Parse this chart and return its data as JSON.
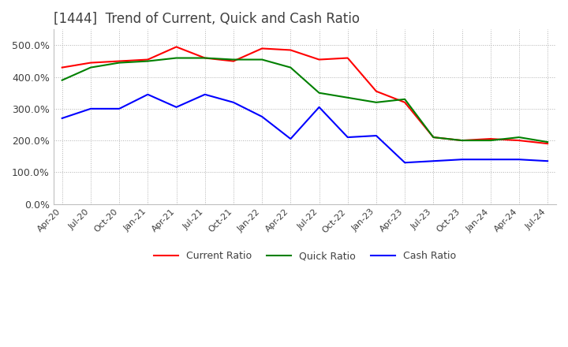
{
  "title": "[1444]  Trend of Current, Quick and Cash Ratio",
  "title_color": "#404040",
  "background_color": "#ffffff",
  "plot_background": "#ffffff",
  "grid_color": "#b0b0b0",
  "ylim": [
    0.0,
    5.5
  ],
  "yticks": [
    0.0,
    1.0,
    2.0,
    3.0,
    4.0,
    5.0
  ],
  "ytick_labels": [
    "0.0%",
    "100.0%",
    "200.0%",
    "300.0%",
    "400.0%",
    "500.0%"
  ],
  "xtick_labels": [
    "Apr-20",
    "Jul-20",
    "Oct-20",
    "Jan-21",
    "Apr-21",
    "Jul-21",
    "Oct-21",
    "Jan-22",
    "Apr-22",
    "Jul-22",
    "Oct-22",
    "Jan-23",
    "Apr-23",
    "Jul-23",
    "Oct-23",
    "Jan-24",
    "Apr-24",
    "Jul-24"
  ],
  "current_ratio": [
    4.3,
    4.45,
    4.5,
    4.55,
    4.95,
    4.6,
    4.5,
    4.9,
    4.85,
    4.55,
    4.6,
    3.55,
    3.2,
    2.1,
    2.0,
    2.05,
    2.0,
    1.9
  ],
  "quick_ratio": [
    3.9,
    4.3,
    4.45,
    4.5,
    4.6,
    4.6,
    4.55,
    4.55,
    4.3,
    3.5,
    3.35,
    3.2,
    3.3,
    2.1,
    2.0,
    2.0,
    2.1,
    1.95
  ],
  "cash_ratio": [
    2.7,
    3.0,
    3.0,
    3.45,
    3.05,
    3.45,
    3.2,
    2.75,
    2.05,
    3.05,
    2.1,
    2.15,
    1.3,
    1.35,
    1.4,
    1.4,
    1.4,
    1.35
  ],
  "current_color": "#ff0000",
  "quick_color": "#008000",
  "cash_color": "#0000ff",
  "line_width": 1.5,
  "legend_labels": [
    "Current Ratio",
    "Quick Ratio",
    "Cash Ratio"
  ]
}
